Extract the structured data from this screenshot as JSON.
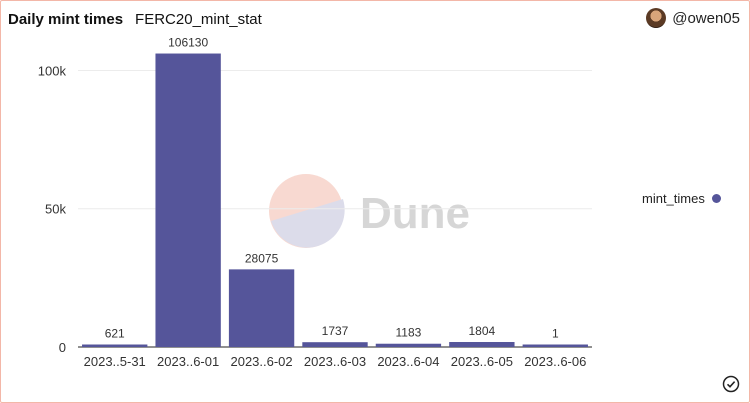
{
  "header": {
    "title": "Daily mint times",
    "query_name": "FERC20_mint_stat",
    "author": "@owen05"
  },
  "watermark": "Dune",
  "colors": {
    "bar": "#55559a",
    "frame": "#f3b7a8",
    "grid": "#ececec"
  },
  "chart_data": {
    "type": "bar",
    "categories": [
      "2023..5-31",
      "2023..6-01",
      "2023..6-02",
      "2023..6-03",
      "2023..6-04",
      "2023..6-05",
      "2023..6-06"
    ],
    "series": [
      {
        "name": "mint_times",
        "values": [
          621,
          106130,
          28075,
          1737,
          1183,
          1804,
          1
        ]
      }
    ],
    "y_ticks": [
      0,
      50000,
      100000
    ],
    "y_tick_labels": [
      "0",
      "50k",
      "100k"
    ],
    "ylim": [
      0,
      115000
    ],
    "grid": true,
    "legend_position": "right"
  }
}
